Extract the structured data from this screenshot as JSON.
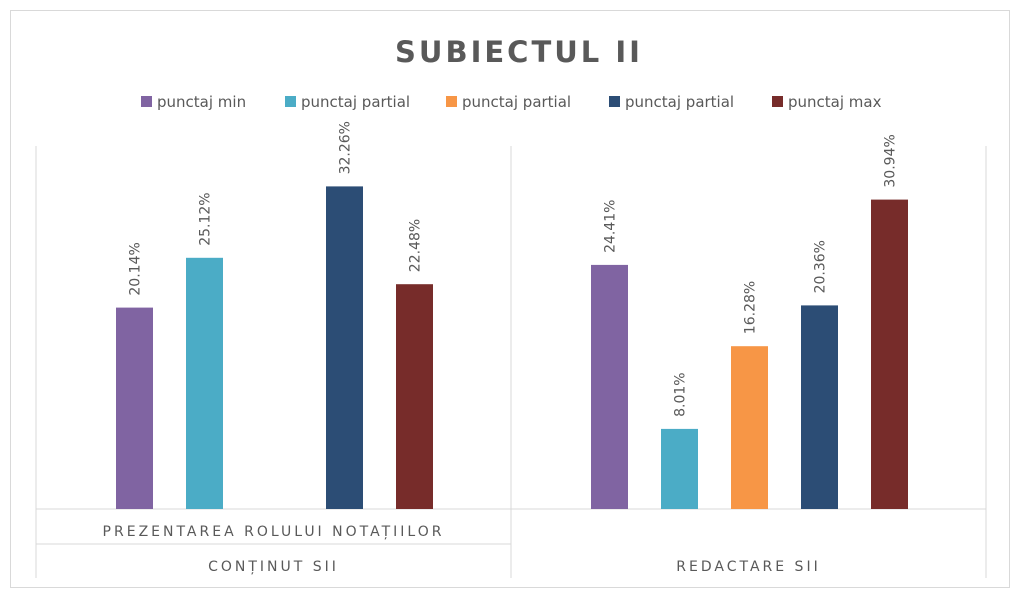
{
  "chart_data": {
    "type": "bar",
    "title": "SUBIECTUL  II",
    "legend_position": "top",
    "grid": false,
    "ylim": [
      0,
      34
    ],
    "series": [
      {
        "name": "punctaj min",
        "color": "#8064a2"
      },
      {
        "name": "punctaj partial",
        "color": "#4bacc6"
      },
      {
        "name": "punctaj partial",
        "color": "#f79646"
      },
      {
        "name": "punctaj partial",
        "color": "#2c4d75"
      },
      {
        "name": "punctaj max",
        "color": "#772c2a"
      }
    ],
    "groups": [
      {
        "label": "PREZENTAREA ROLULUI NOTAȚIILOR",
        "parent": "CONȚINUT SII",
        "values": [
          20.14,
          25.12,
          null,
          32.26,
          22.48
        ],
        "labels": [
          "20.14%",
          "25.12%",
          "",
          "32.26%",
          "22.48%"
        ]
      },
      {
        "label": "",
        "parent": "REDACTARE SII",
        "values": [
          24.41,
          8.01,
          16.28,
          20.36,
          30.94
        ],
        "labels": [
          "24.41%",
          "8.01%",
          "16.28%",
          "20.36%",
          "30.94%"
        ]
      }
    ]
  }
}
